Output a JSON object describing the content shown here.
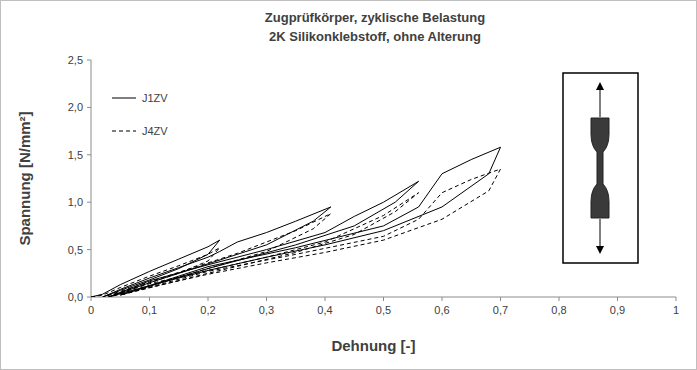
{
  "chart_data": {
    "type": "line",
    "title": "Zugprüfkörper, zyklische Belastung",
    "subtitle": "2K Silikonklebstoff, ohne Alterung",
    "x_label": "Dehnung [-]",
    "y_label": "Spannung [N/mm²]",
    "xlim": [
      0,
      1
    ],
    "ylim": [
      0,
      2.5
    ],
    "xticks": [
      0,
      {
        "value": 0.1,
        "label": "0,1"
      },
      {
        "value": 0.2,
        "label": "0,2"
      },
      {
        "value": 0.3,
        "label": "0,3"
      },
      {
        "value": 0.4,
        "label": "0,4"
      },
      {
        "value": 0.5,
        "label": "0,5"
      },
      {
        "value": 0.6,
        "label": "0,6"
      },
      {
        "value": 0.7,
        "label": "0,7"
      },
      {
        "value": 0.8,
        "label": "0,8"
      },
      {
        "value": 0.9,
        "label": "0,9"
      },
      1
    ],
    "yticks": [
      {
        "value": 0,
        "label": "0,0"
      },
      {
        "value": 0.5,
        "label": "0,5"
      },
      {
        "value": 1,
        "label": "1,0"
      },
      {
        "value": 1.5,
        "label": "1,5"
      },
      {
        "value": 2,
        "label": "2,0"
      },
      {
        "value": 2.5,
        "label": "2,5"
      }
    ],
    "grid": false,
    "legend": "upper left",
    "series": [
      {
        "name": "J1ZV",
        "color": "#000000",
        "line_style": "solid",
        "x": [
          0,
          0.02,
          0.05,
          0.1,
          0.15,
          0.2,
          0.22,
          0.2,
          0.15,
          0.1,
          0.05,
          0.02,
          0.05,
          0.1,
          0.15,
          0.2,
          0.22,
          0.25,
          0.3,
          0.35,
          0.41,
          0.38,
          0.3,
          0.2,
          0.1,
          0.03,
          0.1,
          0.2,
          0.3,
          0.4,
          0.45,
          0.5,
          0.56,
          0.52,
          0.45,
          0.35,
          0.2,
          0.05,
          0.2,
          0.35,
          0.5,
          0.56,
          0.6,
          0.65,
          0.7,
          0.68,
          0.6,
          0.5,
          0.4,
          0.3,
          0.2,
          0.1,
          0.03
        ],
        "values": [
          0,
          0.03,
          0.13,
          0.27,
          0.4,
          0.53,
          0.6,
          0.45,
          0.3,
          0.18,
          0.07,
          0,
          0.08,
          0.2,
          0.31,
          0.42,
          0.48,
          0.58,
          0.68,
          0.8,
          0.95,
          0.8,
          0.55,
          0.35,
          0.15,
          0,
          0.17,
          0.34,
          0.5,
          0.68,
          0.85,
          1.0,
          1.22,
          1.0,
          0.75,
          0.55,
          0.3,
          0.02,
          0.32,
          0.52,
          0.75,
          0.95,
          1.3,
          1.45,
          1.58,
          1.3,
          0.95,
          0.7,
          0.55,
          0.42,
          0.28,
          0.12,
          0
        ]
      },
      {
        "name": "J4ZV",
        "color": "#000000",
        "line_style": "dashed",
        "x": [
          0,
          0.02,
          0.05,
          0.1,
          0.15,
          0.2,
          0.22,
          0.2,
          0.15,
          0.1,
          0.05,
          0.02,
          0.05,
          0.1,
          0.15,
          0.2,
          0.25,
          0.3,
          0.35,
          0.41,
          0.38,
          0.3,
          0.2,
          0.1,
          0.03,
          0.1,
          0.2,
          0.3,
          0.4,
          0.45,
          0.5,
          0.56,
          0.52,
          0.45,
          0.35,
          0.2,
          0.05,
          0.2,
          0.35,
          0.5,
          0.56,
          0.6,
          0.65,
          0.7,
          0.68,
          0.6,
          0.5,
          0.4,
          0.3,
          0.2,
          0.1,
          0.03
        ],
        "values": [
          0,
          0.02,
          0.1,
          0.22,
          0.33,
          0.45,
          0.52,
          0.38,
          0.25,
          0.15,
          0.05,
          0,
          0.06,
          0.16,
          0.26,
          0.36,
          0.46,
          0.58,
          0.7,
          0.88,
          0.72,
          0.48,
          0.3,
          0.12,
          0,
          0.14,
          0.28,
          0.42,
          0.58,
          0.72,
          0.86,
          1.1,
          0.9,
          0.66,
          0.47,
          0.25,
          0.02,
          0.27,
          0.45,
          0.64,
          0.82,
          1.1,
          1.24,
          1.35,
          1.12,
          0.82,
          0.6,
          0.47,
          0.36,
          0.24,
          0.1,
          0
        ]
      }
    ]
  }
}
